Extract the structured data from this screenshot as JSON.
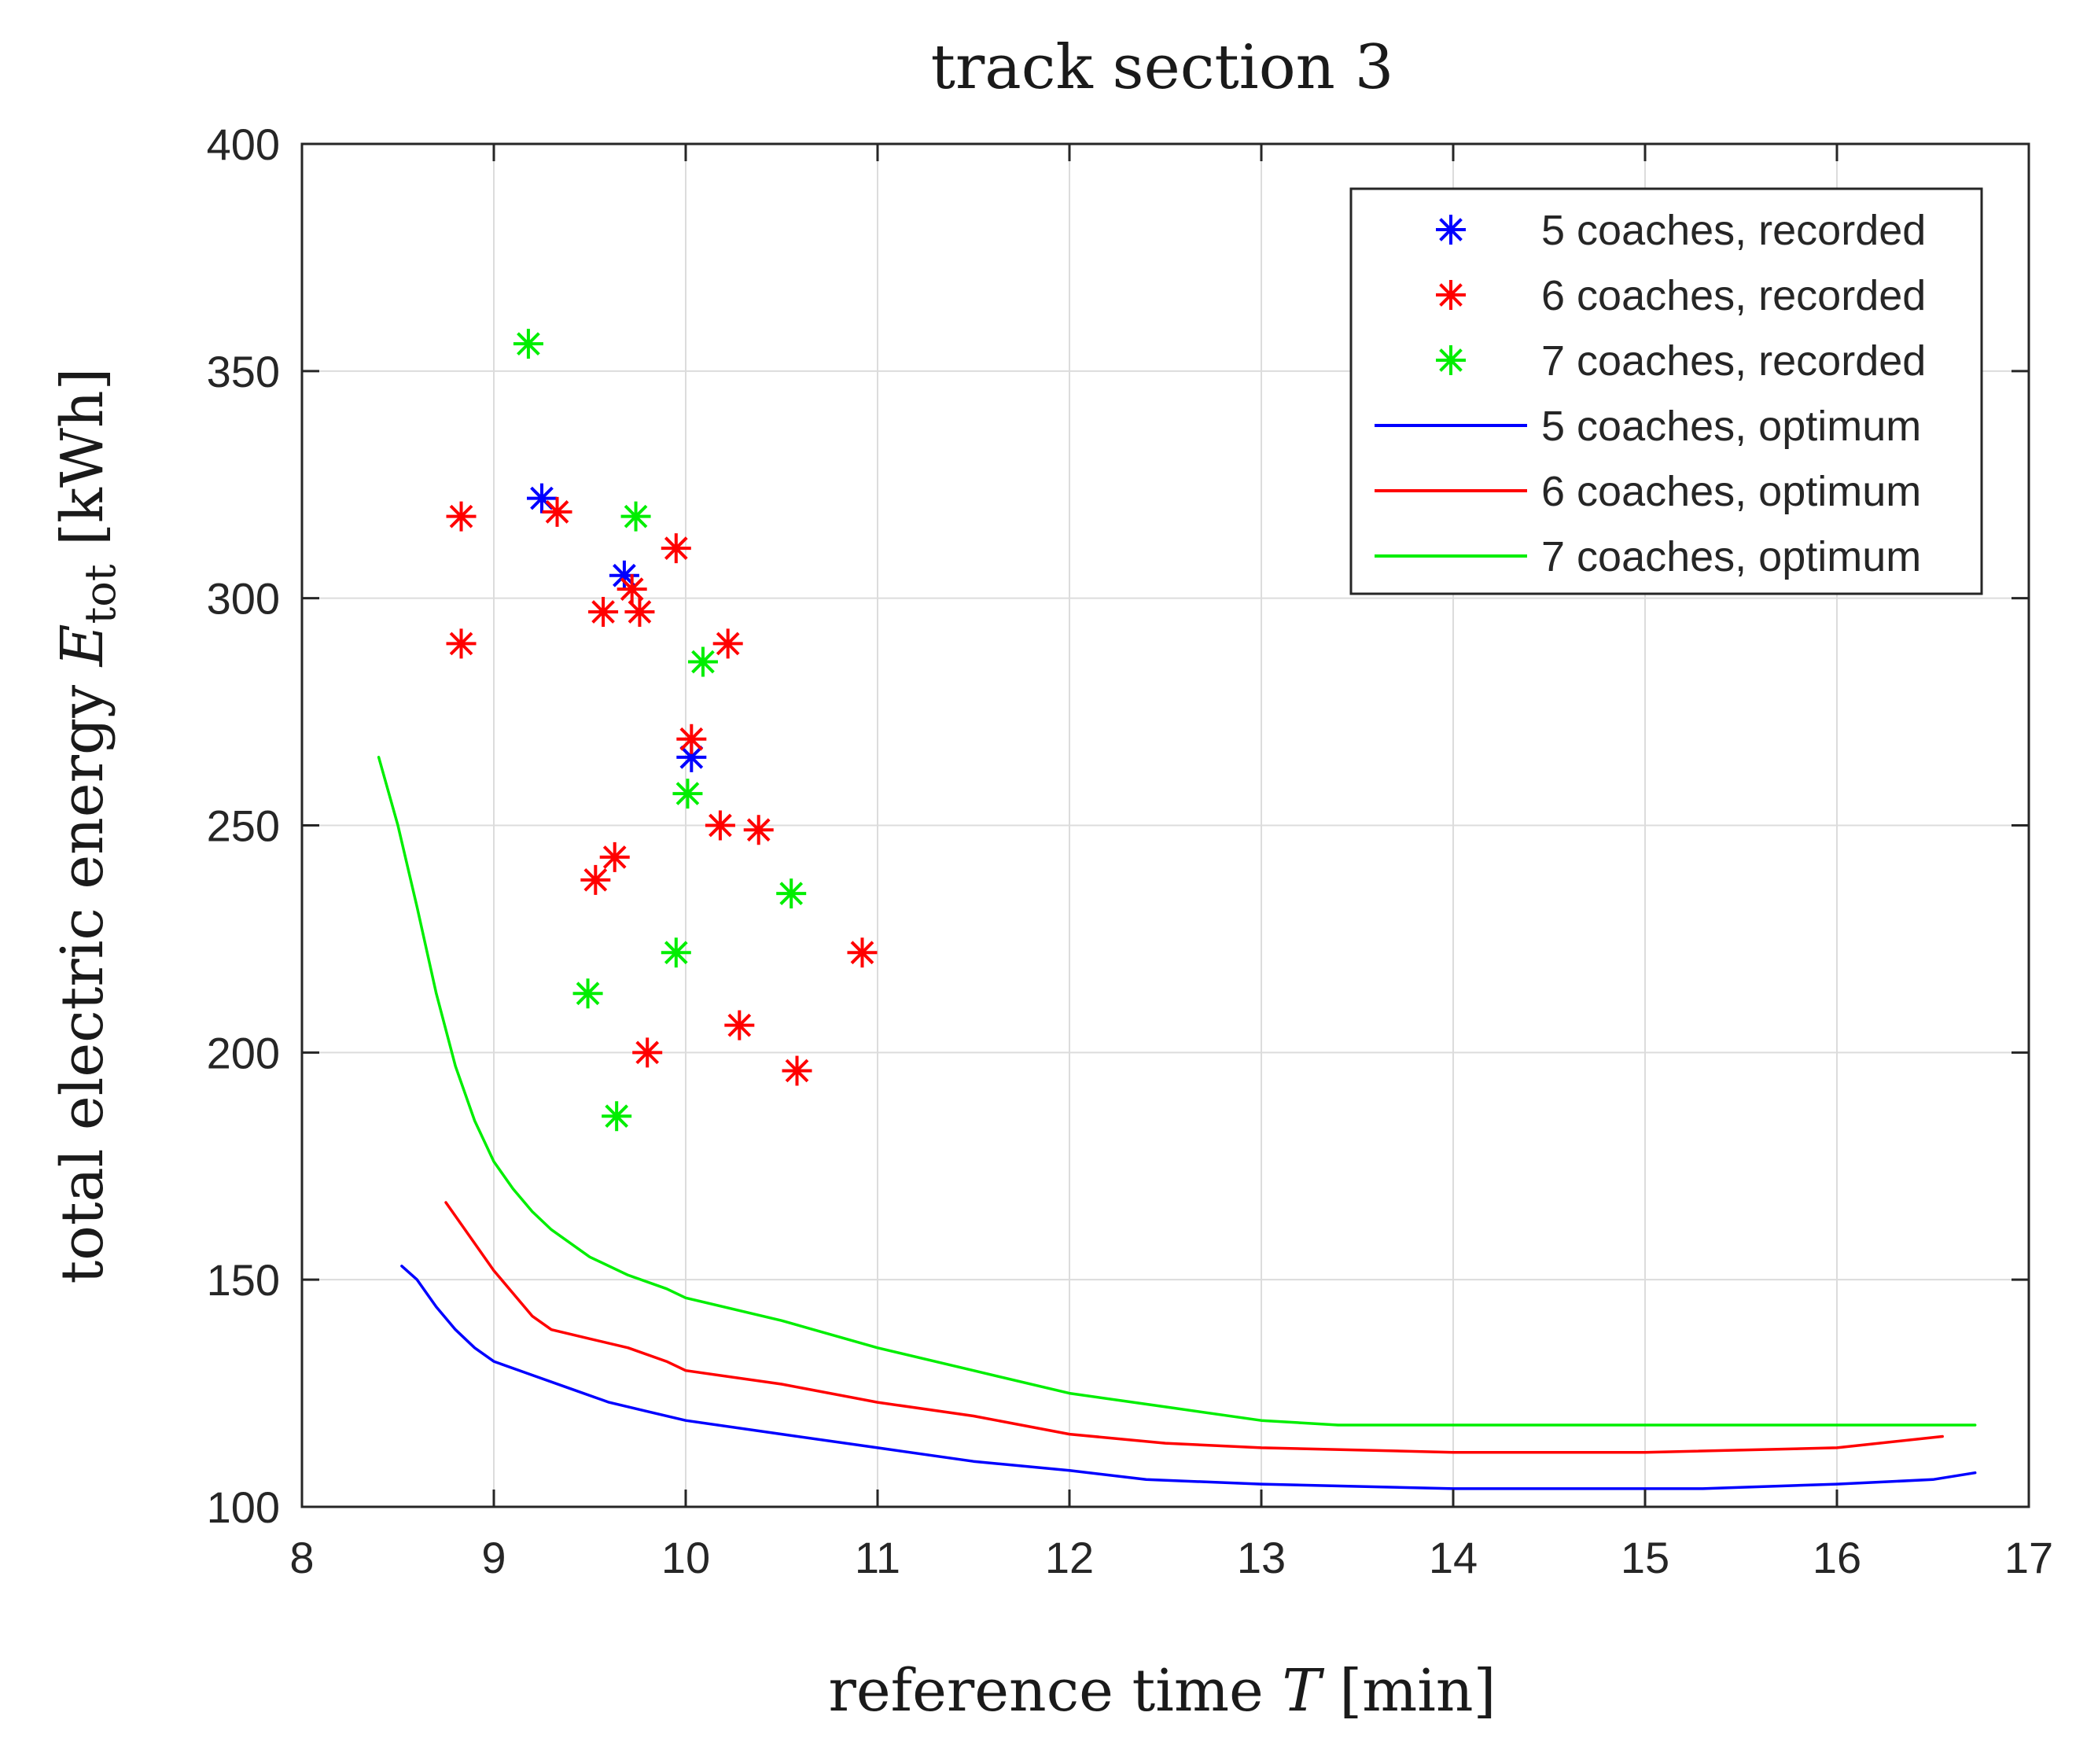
{
  "chart_data": {
    "type": "scatter",
    "title": "track section 3",
    "xlabel": {
      "main": "reference time ",
      "var": "T",
      "unit": " [min]"
    },
    "ylabel": {
      "main": "total electric energy ",
      "var": "E",
      "sub": "tot",
      "unit": " [kWh]"
    },
    "xlim": [
      8,
      17
    ],
    "ylim": [
      100,
      400
    ],
    "xticks": [
      8,
      9,
      10,
      11,
      12,
      13,
      14,
      15,
      16,
      17
    ],
    "yticks": [
      100,
      150,
      200,
      250,
      300,
      350,
      400
    ],
    "xtick_labels": [
      "8",
      "9",
      "10",
      "11",
      "12",
      "13",
      "14",
      "15",
      "16",
      "17"
    ],
    "ytick_labels": [
      "100",
      "150",
      "200",
      "250",
      "300",
      "350",
      "400"
    ],
    "grid": true,
    "legend_position": "top-right",
    "series": [
      {
        "name": "5 coaches, recorded",
        "kind": "marker",
        "color": "#0000ff",
        "points": [
          [
            9.25,
            322
          ],
          [
            9.68,
            305
          ],
          [
            10.03,
            265
          ]
        ]
      },
      {
        "name": "6 coaches, recorded",
        "kind": "marker",
        "color": "#ff0000",
        "points": [
          [
            8.83,
            318
          ],
          [
            9.33,
            319
          ],
          [
            9.95,
            311
          ],
          [
            8.83,
            290
          ],
          [
            9.57,
            297
          ],
          [
            9.72,
            302
          ],
          [
            9.76,
            297
          ],
          [
            10.22,
            290
          ],
          [
            10.03,
            269
          ],
          [
            10.18,
            250
          ],
          [
            10.38,
            249
          ],
          [
            9.53,
            238
          ],
          [
            9.63,
            243
          ],
          [
            10.92,
            222
          ],
          [
            10.28,
            206
          ],
          [
            9.8,
            200
          ],
          [
            10.58,
            196
          ]
        ]
      },
      {
        "name": "7 coaches, recorded",
        "kind": "marker",
        "color": "#00ee00",
        "points": [
          [
            9.18,
            356
          ],
          [
            9.74,
            318
          ],
          [
            10.09,
            286
          ],
          [
            10.01,
            257
          ],
          [
            10.55,
            235
          ],
          [
            9.95,
            222
          ],
          [
            9.49,
            213
          ],
          [
            9.64,
            186
          ]
        ]
      },
      {
        "name": "5 coaches, optimum",
        "kind": "line",
        "color": "#0000ff",
        "points": [
          [
            8.52,
            153
          ],
          [
            8.6,
            150
          ],
          [
            8.7,
            144
          ],
          [
            8.8,
            139
          ],
          [
            8.9,
            135
          ],
          [
            9.0,
            132
          ],
          [
            9.2,
            129
          ],
          [
            9.4,
            126
          ],
          [
            9.6,
            123
          ],
          [
            9.8,
            121
          ],
          [
            10.0,
            119
          ],
          [
            10.5,
            116
          ],
          [
            11.0,
            113
          ],
          [
            11.5,
            110
          ],
          [
            12.0,
            108
          ],
          [
            12.4,
            106
          ],
          [
            13.0,
            105
          ],
          [
            14.0,
            104
          ],
          [
            15.3,
            104
          ],
          [
            16.0,
            105
          ],
          [
            16.5,
            106
          ],
          [
            16.72,
            107.5
          ]
        ]
      },
      {
        "name": "6 coaches, optimum",
        "kind": "line",
        "color": "#ff0000",
        "points": [
          [
            8.75,
            167
          ],
          [
            8.85,
            161
          ],
          [
            9.0,
            152
          ],
          [
            9.1,
            147
          ],
          [
            9.2,
            142
          ],
          [
            9.3,
            139
          ],
          [
            9.5,
            137
          ],
          [
            9.7,
            135
          ],
          [
            9.9,
            132
          ],
          [
            10.0,
            130
          ],
          [
            10.5,
            127
          ],
          [
            11.0,
            123
          ],
          [
            11.5,
            120
          ],
          [
            12.0,
            116
          ],
          [
            12.5,
            114
          ],
          [
            13.0,
            113
          ],
          [
            14.0,
            112
          ],
          [
            15.0,
            112
          ],
          [
            16.0,
            113
          ],
          [
            16.55,
            115.5
          ]
        ]
      },
      {
        "name": "7 coaches, optimum",
        "kind": "line",
        "color": "#00ee00",
        "points": [
          [
            8.4,
            265
          ],
          [
            8.5,
            250
          ],
          [
            8.6,
            232
          ],
          [
            8.7,
            213
          ],
          [
            8.8,
            197
          ],
          [
            8.9,
            185
          ],
          [
            9.0,
            176
          ],
          [
            9.1,
            170
          ],
          [
            9.2,
            165
          ],
          [
            9.3,
            161
          ],
          [
            9.5,
            155
          ],
          [
            9.7,
            151
          ],
          [
            9.9,
            148
          ],
          [
            10.0,
            146
          ],
          [
            10.5,
            141
          ],
          [
            11.0,
            135
          ],
          [
            11.5,
            130
          ],
          [
            12.0,
            125
          ],
          [
            12.5,
            122
          ],
          [
            13.0,
            119
          ],
          [
            13.4,
            118
          ],
          [
            14.0,
            118
          ],
          [
            15.0,
            118
          ],
          [
            16.0,
            118
          ],
          [
            16.72,
            118
          ]
        ]
      }
    ]
  }
}
